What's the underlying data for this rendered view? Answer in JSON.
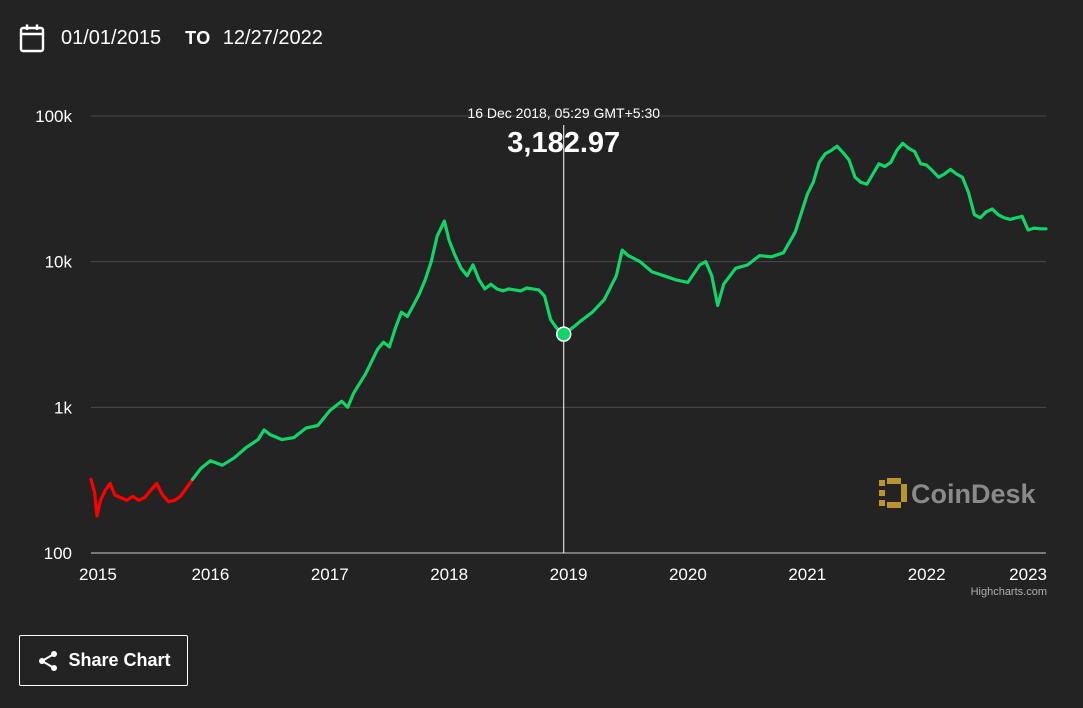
{
  "date_range": {
    "from": "01/01/2015",
    "to_label": "TO",
    "to": "12/27/2022",
    "icon": "calendar-icon"
  },
  "tooltip": {
    "date": "16 Dec 2018, 05:29 GMT+5:30",
    "value": "3,182.97"
  },
  "watermark": "CoinDesk",
  "credits": "Highcharts.com",
  "share": {
    "label": "Share Chart",
    "icon": "share-icon"
  },
  "colors": {
    "up": "#12d467",
    "down": "#ff0000",
    "background": "#232323",
    "grid": "#4a4a4a"
  },
  "chart_data": {
    "type": "line",
    "title": "",
    "xlabel": "",
    "ylabel": "",
    "y_scale": "log",
    "ylim": [
      100,
      100000
    ],
    "y_ticks": [
      100,
      1000,
      10000,
      100000
    ],
    "y_tick_labels": [
      "100",
      "1k",
      "10k",
      "100k"
    ],
    "xlim": [
      2015.0,
      2023.0
    ],
    "x_ticks": [
      2015,
      2016,
      2017,
      2018,
      2019,
      2020,
      2021,
      2022,
      2023
    ],
    "x_tick_labels": [
      "2015",
      "2016",
      "2017",
      "2018",
      "2019",
      "2020",
      "2021",
      "2022",
      "2023"
    ],
    "grid": true,
    "highlight_point": {
      "x": 2018.96,
      "y": 3182.97
    },
    "series": [
      {
        "color": "#ff0000",
        "x": [
          2015.0,
          2015.03,
          2015.05,
          2015.08,
          2015.12,
          2015.16,
          2015.2,
          2015.25,
          2015.3,
          2015.35,
          2015.4,
          2015.45,
          2015.5,
          2015.55,
          2015.6,
          2015.65,
          2015.7,
          2015.75,
          2015.8,
          2015.85
        ],
        "y": [
          320,
          260,
          180,
          230,
          270,
          300,
          250,
          240,
          230,
          245,
          230,
          240,
          270,
          300,
          250,
          225,
          230,
          245,
          280,
          320
        ]
      },
      {
        "color": "#12d467",
        "x": [
          2015.85,
          2015.92,
          2016.0,
          2016.1,
          2016.2,
          2016.3,
          2016.4,
          2016.45,
          2016.5,
          2016.6,
          2016.7,
          2016.8,
          2016.9,
          2017.0,
          2017.1,
          2017.15,
          2017.2,
          2017.3,
          2017.4,
          2017.45,
          2017.5,
          2017.55,
          2017.6,
          2017.65,
          2017.7,
          2017.75,
          2017.8,
          2017.85,
          2017.9,
          2017.96,
          2018.0,
          2018.05,
          2018.1,
          2018.15,
          2018.2,
          2018.25,
          2018.3,
          2018.35,
          2018.4,
          2018.45,
          2018.5,
          2018.55,
          2018.6,
          2018.65,
          2018.7,
          2018.75,
          2018.8,
          2018.85,
          2018.9,
          2018.96,
          2019.05,
          2019.1,
          2019.2,
          2019.3,
          2019.4,
          2019.45,
          2019.5,
          2019.55,
          2019.6,
          2019.7,
          2019.8,
          2019.9,
          2020.0,
          2020.1,
          2020.15,
          2020.2,
          2020.25,
          2020.3,
          2020.4,
          2020.5,
          2020.6,
          2020.7,
          2020.8,
          2020.9,
          2021.0,
          2021.05,
          2021.1,
          2021.15,
          2021.2,
          2021.25,
          2021.3,
          2021.35,
          2021.4,
          2021.45,
          2021.5,
          2021.55,
          2021.6,
          2021.65,
          2021.7,
          2021.75,
          2021.8,
          2021.85,
          2021.9,
          2021.95,
          2022.0,
          2022.05,
          2022.1,
          2022.15,
          2022.2,
          2022.25,
          2022.3,
          2022.35,
          2022.4,
          2022.45,
          2022.5,
          2022.55,
          2022.6,
          2022.65,
          2022.7,
          2022.75,
          2022.8,
          2022.85,
          2022.9,
          2022.95,
          2023.0
        ],
        "y": [
          320,
          380,
          430,
          400,
          450,
          530,
          600,
          700,
          650,
          600,
          620,
          720,
          750,
          950,
          1100,
          1000,
          1250,
          1700,
          2500,
          2800,
          2600,
          3500,
          4500,
          4200,
          5000,
          6000,
          7500,
          10000,
          15000,
          19000,
          14000,
          11000,
          9000,
          8000,
          9500,
          7500,
          6500,
          7000,
          6500,
          6300,
          6500,
          6400,
          6300,
          6600,
          6500,
          6400,
          5800,
          4000,
          3500,
          3182.97,
          3600,
          3900,
          4500,
          5500,
          8000,
          12000,
          11000,
          10500,
          10000,
          8500,
          8000,
          7500,
          7200,
          9500,
          10000,
          8000,
          5000,
          7000,
          9000,
          9500,
          11000,
          10800,
          11500,
          16000,
          29000,
          35000,
          48000,
          55000,
          58000,
          62000,
          56000,
          50000,
          38000,
          35000,
          34000,
          40000,
          47000,
          45000,
          48000,
          58000,
          65000,
          60000,
          57000,
          47000,
          46000,
          42000,
          38000,
          40000,
          43000,
          40000,
          38000,
          30000,
          21000,
          20000,
          22000,
          23000,
          21000,
          20000,
          19500,
          20000,
          20500,
          16500,
          17000,
          16800,
          16800
        ]
      }
    ]
  }
}
